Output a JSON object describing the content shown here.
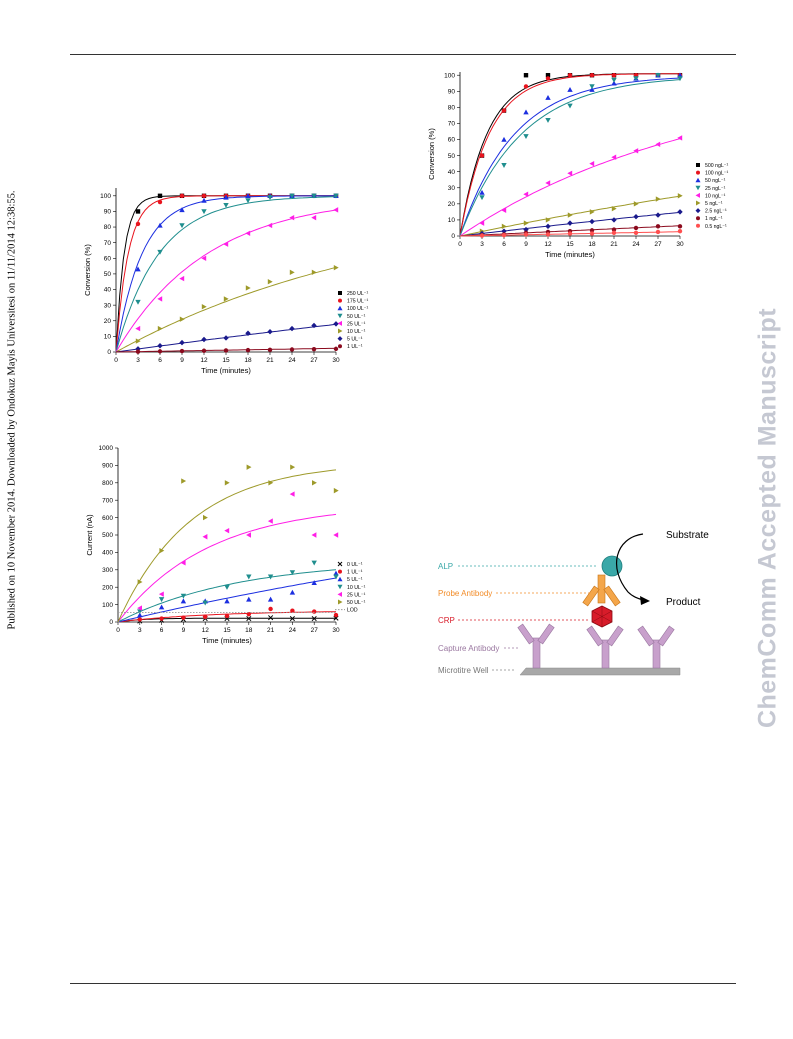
{
  "page": {
    "sidebar_text": "Published on 10 November 2014. Downloaded by Ondokuz Mayis Universitesi on 11/11/2014 12:38:55.",
    "watermark": "ChemComm Accepted Manuscript"
  },
  "chart_data": [
    {
      "id": "conv-ul",
      "type": "scatter",
      "xlabel": "Time (minutes)",
      "ylabel": "Conversion (%)",
      "xlim": [
        0,
        30
      ],
      "ylim": [
        0,
        105
      ],
      "xticks": [
        0,
        3,
        6,
        9,
        12,
        15,
        18,
        21,
        24,
        27,
        30
      ],
      "yticks": [
        0,
        10,
        20,
        30,
        40,
        50,
        60,
        70,
        80,
        90,
        100
      ],
      "legend_position": "right",
      "x": [
        3,
        6,
        9,
        12,
        15,
        18,
        21,
        24,
        27,
        30
      ],
      "series": [
        {
          "name": "250 UL⁻¹",
          "color": "#000000",
          "marker": "square",
          "plateau": 100,
          "k": 0.9,
          "values": [
            90,
            100,
            100,
            100,
            100,
            100,
            100,
            100,
            100,
            100
          ]
        },
        {
          "name": "175 UL⁻¹",
          "color": "#e8141e",
          "marker": "circle",
          "plateau": 100,
          "k": 0.6,
          "values": [
            82,
            96,
            100,
            100,
            100,
            100,
            100,
            100,
            100,
            100
          ]
        },
        {
          "name": "100 UL⁻¹",
          "color": "#1c2fe0",
          "marker": "triangle-up",
          "plateau": 100,
          "k": 0.28,
          "values": [
            53,
            81,
            91,
            97,
            99,
            100,
            100,
            100,
            100,
            100
          ]
        },
        {
          "name": "50 UL⁻¹",
          "color": "#1f8e8e",
          "marker": "triangle-down",
          "plateau": 100,
          "k": 0.17,
          "values": [
            32,
            64,
            81,
            90,
            94,
            97,
            99,
            100,
            100,
            100
          ]
        },
        {
          "name": "25 UL⁻¹",
          "color": "#ff1ee6",
          "marker": "triangle-left",
          "plateau": 100,
          "k": 0.08,
          "values": [
            15,
            34,
            47,
            60,
            69,
            76,
            81,
            86,
            86,
            91
          ]
        },
        {
          "name": "10 UL⁻¹",
          "color": "#9e9a2a",
          "marker": "triangle-right",
          "plateau": 100,
          "k": 0.026,
          "values": [
            7,
            15,
            21,
            29,
            34,
            41,
            45,
            51,
            51,
            54
          ]
        },
        {
          "name": "5 UL⁻¹",
          "color": "#1a1a8c",
          "marker": "diamond",
          "plateau": 100,
          "k": 0.0065,
          "values": [
            2,
            4,
            6,
            8,
            9,
            12,
            13,
            15,
            17,
            18
          ]
        },
        {
          "name": "1 UL⁻¹",
          "color": "#8b0a1e",
          "marker": "hexagon",
          "plateau": 100,
          "k": 0.0008,
          "values": [
            0.2,
            0.4,
            0.6,
            0.8,
            1,
            1.2,
            1.4,
            1.6,
            1.8,
            2
          ]
        }
      ]
    },
    {
      "id": "conv-ngl",
      "type": "scatter",
      "xlabel": "Time (minutes)",
      "ylabel": "Conversion (%)",
      "xlim": [
        0,
        30
      ],
      "ylim": [
        0,
        102
      ],
      "xticks": [
        0,
        3,
        6,
        9,
        12,
        15,
        18,
        21,
        24,
        27,
        30
      ],
      "yticks": [
        0,
        10,
        20,
        30,
        40,
        50,
        60,
        70,
        80,
        90,
        100
      ],
      "legend_position": "right",
      "x": [
        3,
        6,
        9,
        12,
        15,
        18,
        21,
        24,
        27,
        30
      ],
      "series": [
        {
          "name": "500 ngL⁻¹",
          "color": "#000000",
          "marker": "square",
          "plateau": 101,
          "k": 0.27,
          "values": [
            50,
            78,
            100,
            100,
            100,
            100,
            100,
            100,
            100,
            100
          ]
        },
        {
          "name": "100 ngL⁻¹",
          "color": "#e8141e",
          "marker": "circle",
          "plateau": 101,
          "k": 0.25,
          "values": [
            50,
            78,
            93,
            98,
            100,
            100,
            100,
            100,
            100,
            100
          ]
        },
        {
          "name": "50 ngL⁻¹",
          "color": "#1c2fe0",
          "marker": "triangle-up",
          "plateau": 100,
          "k": 0.135,
          "values": [
            27,
            60,
            77,
            86,
            91,
            91,
            95,
            98,
            100,
            100
          ]
        },
        {
          "name": "25 ngL⁻¹",
          "color": "#1f8e8e",
          "marker": "triangle-down",
          "plateau": 100,
          "k": 0.12,
          "values": [
            24,
            44,
            62,
            72,
            81,
            93,
            97,
            98,
            100,
            98
          ]
        },
        {
          "name": "10 ngL⁻¹",
          "color": "#ff1ee6",
          "marker": "triangle-left",
          "plateau": 100,
          "k": 0.031,
          "values": [
            8,
            16,
            26,
            33,
            39,
            45,
            49,
            53,
            57,
            61
          ]
        },
        {
          "name": "5 ngL⁻¹",
          "color": "#9e9a2a",
          "marker": "triangle-right",
          "plateau": 100,
          "k": 0.0095,
          "values": [
            3,
            6,
            8,
            10,
            13,
            15,
            17,
            20,
            23,
            25
          ]
        },
        {
          "name": "2.5 ngL⁻¹",
          "color": "#1a1a8c",
          "marker": "diamond",
          "plateau": 100,
          "k": 0.0053,
          "values": [
            1.5,
            3,
            4,
            6,
            8,
            9,
            10,
            12,
            13,
            15
          ]
        },
        {
          "name": "1 ngL⁻¹",
          "color": "#8b0a1e",
          "marker": "hexagon",
          "plateau": 100,
          "k": 0.0022,
          "values": [
            0.5,
            1,
            2,
            2.5,
            3,
            3.5,
            4,
            5,
            6,
            6
          ]
        },
        {
          "name": "0.5 ngL⁻¹",
          "color": "#ff4f4f",
          "marker": "circle",
          "plateau": 100,
          "k": 0.0009,
          "values": [
            0.3,
            0.5,
            1,
            1,
            1.5,
            1.5,
            2,
            2,
            2.5,
            3
          ]
        }
      ]
    },
    {
      "id": "current",
      "type": "scatter",
      "xlabel": "Time (minutes)",
      "ylabel": "Current (nA)",
      "xlim": [
        0,
        30
      ],
      "ylim": [
        0,
        1000
      ],
      "xticks": [
        0,
        3,
        6,
        9,
        12,
        15,
        18,
        21,
        24,
        27,
        30
      ],
      "yticks": [
        0,
        100,
        200,
        300,
        400,
        500,
        600,
        700,
        800,
        900,
        1000
      ],
      "legend_position": "right",
      "x": [
        3,
        6,
        9,
        12,
        15,
        18,
        21,
        24,
        27,
        30
      ],
      "series": [
        {
          "name": "0 UL⁻¹",
          "color": "#000000",
          "marker": "cross",
          "plateau": 22,
          "k": 0.3,
          "values": [
            5,
            10,
            15,
            20,
            20,
            20,
            25,
            20,
            20,
            22
          ]
        },
        {
          "name": "1 UL⁻¹",
          "color": "#e8141e",
          "marker": "circle",
          "plateau": 65,
          "k": 0.08,
          "values": [
            15,
            20,
            25,
            30,
            35,
            45,
            75,
            65,
            60,
            40
          ]
        },
        {
          "name": "5 UL⁻¹",
          "color": "#1c2fe0",
          "marker": "triangle-up",
          "plateau": 900,
          "k": 0.011,
          "values": [
            40,
            85,
            120,
            120,
            120,
            130,
            130,
            170,
            225,
            280
          ]
        },
        {
          "name": "10 UL⁻¹",
          "color": "#1f8e8e",
          "marker": "triangle-down",
          "plateau": 360,
          "k": 0.06,
          "values": [
            60,
            130,
            150,
            110,
            200,
            260,
            260,
            285,
            340,
            260
          ]
        },
        {
          "name": "25 UL⁻¹",
          "color": "#ff1ee6",
          "marker": "triangle-left",
          "plateau": 680,
          "k": 0.08,
          "values": [
            80,
            160,
            340,
            490,
            525,
            500,
            580,
            735,
            500,
            500
          ]
        },
        {
          "name": "50 UL⁻¹",
          "color": "#9e9a2a",
          "marker": "triangle-right",
          "plateau": 920,
          "k": 0.1,
          "values": [
            230,
            410,
            810,
            600,
            800,
            890,
            800,
            890,
            800,
            755
          ]
        },
        {
          "name": "LOD",
          "color": "#999999",
          "marker": "line-dotted",
          "level": 55
        }
      ]
    }
  ],
  "diagram": {
    "substrate": "Substrate",
    "product": "Product",
    "alp": "ALP",
    "probe_antibody": "Probe Antibody",
    "crp": "CRP",
    "capture_antibody": "Capture Antibody",
    "microtitre_well": "Microtitre Well",
    "colors": {
      "alp": "#3aa8a8",
      "probe": "#f28c28",
      "crp": "#d81c2a",
      "capture": "#b48ab8",
      "well": "#a8a8a8"
    }
  }
}
